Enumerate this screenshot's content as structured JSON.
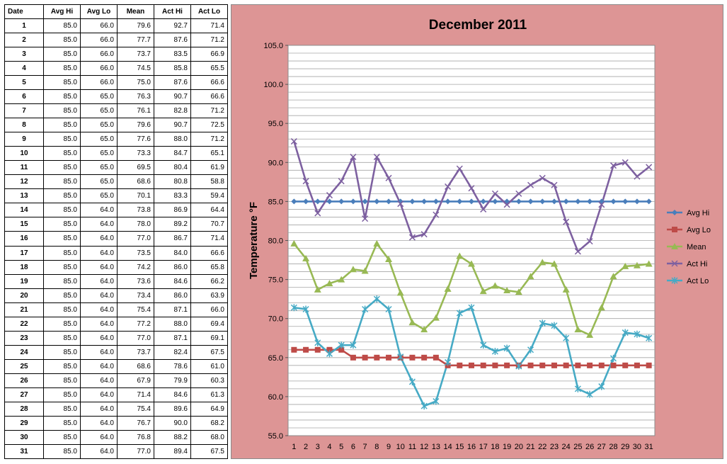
{
  "table": {
    "headers": [
      "Date",
      "Avg Hi",
      "Avg Lo",
      "Mean",
      "Act Hi",
      "Act Lo"
    ],
    "rows": [
      [
        "1",
        "85.0",
        "66.0",
        "79.6",
        "92.7",
        "71.4"
      ],
      [
        "2",
        "85.0",
        "66.0",
        "77.7",
        "87.6",
        "71.2"
      ],
      [
        "3",
        "85.0",
        "66.0",
        "73.7",
        "83.5",
        "66.9"
      ],
      [
        "4",
        "85.0",
        "66.0",
        "74.5",
        "85.8",
        "65.5"
      ],
      [
        "5",
        "85.0",
        "66.0",
        "75.0",
        "87.6",
        "66.6"
      ],
      [
        "6",
        "85.0",
        "65.0",
        "76.3",
        "90.7",
        "66.6"
      ],
      [
        "7",
        "85.0",
        "65.0",
        "76.1",
        "82.8",
        "71.2"
      ],
      [
        "8",
        "85.0",
        "65.0",
        "79.6",
        "90.7",
        "72.5"
      ],
      [
        "9",
        "85.0",
        "65.0",
        "77.6",
        "88.0",
        "71.2"
      ],
      [
        "10",
        "85.0",
        "65.0",
        "73.3",
        "84.7",
        "65.1"
      ],
      [
        "11",
        "85.0",
        "65.0",
        "69.5",
        "80.4",
        "61.9"
      ],
      [
        "12",
        "85.0",
        "65.0",
        "68.6",
        "80.8",
        "58.8"
      ],
      [
        "13",
        "85.0",
        "65.0",
        "70.1",
        "83.3",
        "59.4"
      ],
      [
        "14",
        "85.0",
        "64.0",
        "73.8",
        "86.9",
        "64.4"
      ],
      [
        "15",
        "85.0",
        "64.0",
        "78.0",
        "89.2",
        "70.7"
      ],
      [
        "16",
        "85.0",
        "64.0",
        "77.0",
        "86.7",
        "71.4"
      ],
      [
        "17",
        "85.0",
        "64.0",
        "73.5",
        "84.0",
        "66.6"
      ],
      [
        "18",
        "85.0",
        "64.0",
        "74.2",
        "86.0",
        "65.8"
      ],
      [
        "19",
        "85.0",
        "64.0",
        "73.6",
        "84.6",
        "66.2"
      ],
      [
        "20",
        "85.0",
        "64.0",
        "73.4",
        "86.0",
        "63.9"
      ],
      [
        "21",
        "85.0",
        "64.0",
        "75.4",
        "87.1",
        "66.0"
      ],
      [
        "22",
        "85.0",
        "64.0",
        "77.2",
        "88.0",
        "69.4"
      ],
      [
        "23",
        "85.0",
        "64.0",
        "77.0",
        "87.1",
        "69.1"
      ],
      [
        "24",
        "85.0",
        "64.0",
        "73.7",
        "82.4",
        "67.5"
      ],
      [
        "25",
        "85.0",
        "64.0",
        "68.6",
        "78.6",
        "61.0"
      ],
      [
        "26",
        "85.0",
        "64.0",
        "67.9",
        "79.9",
        "60.3"
      ],
      [
        "27",
        "85.0",
        "64.0",
        "71.4",
        "84.6",
        "61.3"
      ],
      [
        "28",
        "85.0",
        "64.0",
        "75.4",
        "89.6",
        "64.9"
      ],
      [
        "29",
        "85.0",
        "64.0",
        "76.7",
        "90.0",
        "68.2"
      ],
      [
        "30",
        "85.0",
        "64.0",
        "76.8",
        "88.2",
        "68.0"
      ],
      [
        "31",
        "85.0",
        "64.0",
        "77.0",
        "89.4",
        "67.5"
      ]
    ]
  },
  "chart_data": {
    "type": "line",
    "title": "December 2011",
    "xlabel": "",
    "ylabel": "Temperature °F",
    "x": [
      1,
      2,
      3,
      4,
      5,
      6,
      7,
      8,
      9,
      10,
      11,
      12,
      13,
      14,
      15,
      16,
      17,
      18,
      19,
      20,
      21,
      22,
      23,
      24,
      25,
      26,
      27,
      28,
      29,
      30,
      31
    ],
    "ylim": [
      55,
      105
    ],
    "yticks": [
      "55.0",
      "60.0",
      "65.0",
      "70.0",
      "75.0",
      "80.0",
      "85.0",
      "90.0",
      "95.0",
      "100.0",
      "105.0"
    ],
    "grid": "horizontal",
    "legend": "right",
    "background": "#dd9595",
    "series": [
      {
        "name": "Avg Hi",
        "color": "#4a7ebb",
        "marker": "diamond",
        "values": [
          85,
          85,
          85,
          85,
          85,
          85,
          85,
          85,
          85,
          85,
          85,
          85,
          85,
          85,
          85,
          85,
          85,
          85,
          85,
          85,
          85,
          85,
          85,
          85,
          85,
          85,
          85,
          85,
          85,
          85,
          85
        ]
      },
      {
        "name": "Avg Lo",
        "color": "#be4b48",
        "marker": "square",
        "values": [
          66,
          66,
          66,
          66,
          66,
          65,
          65,
          65,
          65,
          65,
          65,
          65,
          65,
          64,
          64,
          64,
          64,
          64,
          64,
          64,
          64,
          64,
          64,
          64,
          64,
          64,
          64,
          64,
          64,
          64,
          64
        ]
      },
      {
        "name": "Mean",
        "color": "#98b954",
        "marker": "triangle",
        "values": [
          79.6,
          77.7,
          73.7,
          74.5,
          75.0,
          76.3,
          76.1,
          79.6,
          77.6,
          73.3,
          69.5,
          68.6,
          70.1,
          73.8,
          78.0,
          77.0,
          73.5,
          74.2,
          73.6,
          73.4,
          75.4,
          77.2,
          77.0,
          73.7,
          68.6,
          67.9,
          71.4,
          75.4,
          76.7,
          76.8,
          77.0
        ]
      },
      {
        "name": "Act Hi",
        "color": "#7d60a0",
        "marker": "x",
        "values": [
          92.7,
          87.6,
          83.5,
          85.8,
          87.6,
          90.7,
          82.8,
          90.7,
          88.0,
          84.7,
          80.4,
          80.8,
          83.3,
          86.9,
          89.2,
          86.7,
          84.0,
          86.0,
          84.6,
          86.0,
          87.1,
          88.0,
          87.1,
          82.4,
          78.6,
          79.9,
          84.6,
          89.6,
          90.0,
          88.2,
          89.4
        ]
      },
      {
        "name": "Act Lo",
        "color": "#46aac5",
        "marker": "star",
        "values": [
          71.4,
          71.2,
          66.9,
          65.5,
          66.6,
          66.6,
          71.2,
          72.5,
          71.2,
          65.1,
          61.9,
          58.8,
          59.4,
          64.4,
          70.7,
          71.4,
          66.6,
          65.8,
          66.2,
          63.9,
          66.0,
          69.4,
          69.1,
          67.5,
          61.0,
          60.3,
          61.3,
          64.9,
          68.2,
          68.0,
          67.5
        ]
      }
    ]
  }
}
